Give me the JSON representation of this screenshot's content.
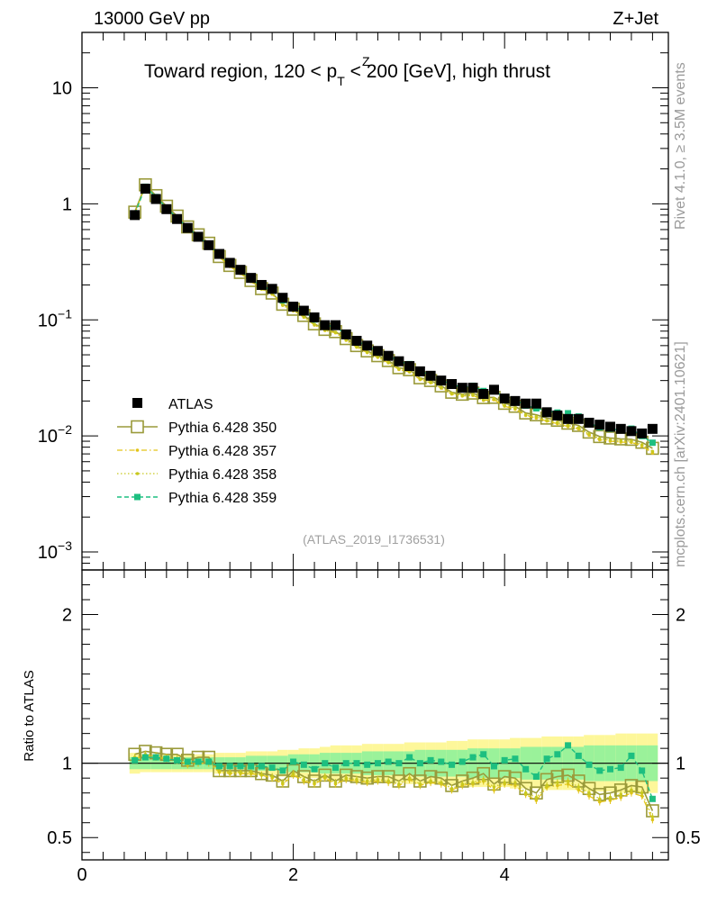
{
  "header": {
    "left": "13000 GeV pp",
    "right": "Z+Jet",
    "title_main": "Toward region, 120 < p",
    "title_sub": "T",
    "title_sup": "Z",
    "title_tail": " < 200 [GeV], high thrust",
    "watermark": "(ATLAS_2019_I1736531)"
  },
  "side_text": {
    "rivet": "Rivet 4.1.0, ≥ 3.5M events",
    "mcplots": "mcplots.cern.ch [arXiv:2401.10621]"
  },
  "chart_data": {
    "type": "scatter",
    "main_yscale": "log",
    "main_ylim": [
      0.0007,
      30
    ],
    "main_ytick_labels": [
      {
        "value": 10,
        "base": "10",
        "exp": ""
      },
      {
        "value": 1,
        "base": "1",
        "exp": ""
      },
      {
        "value": 0.1,
        "base": "10",
        "exp": "−1"
      },
      {
        "value": 0.01,
        "base": "10",
        "exp": "−2"
      },
      {
        "value": 0.001,
        "base": "10",
        "exp": "−3"
      }
    ],
    "xlim": [
      0,
      5.55
    ],
    "x_ticks": [
      {
        "value": 0,
        "label": "0"
      },
      {
        "value": 2,
        "label": "2"
      },
      {
        "value": 4,
        "label": "4"
      }
    ],
    "ratio_ylabel": "Ratio to ATLAS",
    "ratio_ylim": [
      0.35,
      2.3
    ],
    "ratio_ticks": [
      {
        "value": 2,
        "label": "2"
      },
      {
        "value": 1,
        "label": "1"
      },
      {
        "value": 0.5,
        "label": "0.5"
      }
    ],
    "x": [
      0.5,
      0.6,
      0.7,
      0.8,
      0.9,
      1.0,
      1.1,
      1.2,
      1.3,
      1.4,
      1.5,
      1.6,
      1.7,
      1.8,
      1.9,
      2.0,
      2.1,
      2.2,
      2.3,
      2.4,
      2.5,
      2.6,
      2.7,
      2.8,
      2.9,
      3.0,
      3.1,
      3.2,
      3.3,
      3.4,
      3.5,
      3.6,
      3.7,
      3.8,
      3.9,
      4.0,
      4.1,
      4.2,
      4.3,
      4.4,
      4.5,
      4.6,
      4.7,
      4.8,
      4.9,
      5.0,
      5.1,
      5.2,
      5.3,
      5.4
    ],
    "legend": [
      "ATLAS",
      "Pythia 6.428 350",
      "Pythia 6.428 357",
      "Pythia 6.428 358",
      "Pythia 6.428 359"
    ],
    "atlas_values": [
      0.8,
      1.35,
      1.1,
      0.9,
      0.74,
      0.62,
      0.52,
      0.44,
      0.37,
      0.31,
      0.27,
      0.23,
      0.2,
      0.185,
      0.155,
      0.13,
      0.12,
      0.105,
      0.09,
      0.09,
      0.075,
      0.066,
      0.06,
      0.054,
      0.049,
      0.044,
      0.04,
      0.036,
      0.033,
      0.03,
      0.028,
      0.026,
      0.026,
      0.023,
      0.025,
      0.021,
      0.02,
      0.019,
      0.019,
      0.016,
      0.015,
      0.014,
      0.014,
      0.013,
      0.0125,
      0.012,
      0.0115,
      0.011,
      0.0105,
      0.0115
    ],
    "series": [
      {
        "name": "Pythia 6.428 350",
        "color": "#9a9a3a",
        "style": "solid-open-square",
        "ratio": [
          1.06,
          1.08,
          1.07,
          1.06,
          1.06,
          1.02,
          1.04,
          1.04,
          0.95,
          0.95,
          0.95,
          0.95,
          0.93,
          0.92,
          0.88,
          0.95,
          0.91,
          0.88,
          0.92,
          0.88,
          0.92,
          0.91,
          0.9,
          0.91,
          0.91,
          0.88,
          0.93,
          0.88,
          0.91,
          0.9,
          0.85,
          0.88,
          0.9,
          0.93,
          0.86,
          0.91,
          0.9,
          0.83,
          0.8,
          0.89,
          0.91,
          0.92,
          0.88,
          0.83,
          0.79,
          0.8,
          0.82,
          0.85,
          0.84,
          0.68
        ]
      },
      {
        "name": "Pythia 6.428 357",
        "color": "#e3c418",
        "style": "dashdot-dot",
        "ratio": [
          1.03,
          1.05,
          1.04,
          1.03,
          1.02,
          0.99,
          1.0,
          1.0,
          0.94,
          0.93,
          0.93,
          0.93,
          0.92,
          0.9,
          0.86,
          0.92,
          0.88,
          0.86,
          0.9,
          0.86,
          0.89,
          0.88,
          0.87,
          0.88,
          0.87,
          0.85,
          0.89,
          0.85,
          0.87,
          0.86,
          0.82,
          0.85,
          0.86,
          0.88,
          0.82,
          0.86,
          0.85,
          0.79,
          0.75,
          0.84,
          0.85,
          0.86,
          0.82,
          0.78,
          0.74,
          0.75,
          0.77,
          0.8,
          0.78,
          0.62
        ]
      },
      {
        "name": "Pythia 6.428 358",
        "color": "#c8c81e",
        "style": "dotted-dot",
        "ratio": [
          1.04,
          1.06,
          1.05,
          1.04,
          1.03,
          1.0,
          1.01,
          1.01,
          0.95,
          0.94,
          0.94,
          0.94,
          0.92,
          0.91,
          0.87,
          0.93,
          0.89,
          0.87,
          0.91,
          0.87,
          0.9,
          0.89,
          0.88,
          0.89,
          0.88,
          0.86,
          0.9,
          0.86,
          0.88,
          0.87,
          0.83,
          0.86,
          0.87,
          0.89,
          0.84,
          0.87,
          0.87,
          0.8,
          0.77,
          0.85,
          0.87,
          0.88,
          0.84,
          0.8,
          0.76,
          0.77,
          0.79,
          0.82,
          0.8,
          0.64
        ]
      },
      {
        "name": "Pythia 6.428 359",
        "color": "#1dbf80",
        "style": "dashed-filled-square",
        "ratio": [
          1.02,
          1.04,
          1.04,
          1.03,
          1.02,
          1.01,
          1.01,
          1.01,
          0.98,
          0.98,
          0.98,
          0.98,
          0.98,
          0.97,
          0.95,
          1.01,
          0.99,
          0.96,
          1.0,
          0.97,
          1.0,
          1.0,
          0.99,
          1.0,
          1.01,
          1.0,
          1.04,
          1.0,
          1.02,
          1.01,
          0.99,
          1.01,
          1.04,
          1.06,
          0.98,
          1.02,
          1.03,
          0.96,
          0.91,
          1.03,
          1.06,
          1.12,
          1.05,
          0.99,
          0.95,
          0.96,
          0.97,
          1.05,
          0.95,
          0.76
        ]
      }
    ],
    "band_outer_half": [
      0.07,
      0.06,
      0.06,
      0.06,
      0.06,
      0.06,
      0.06,
      0.06,
      0.07,
      0.07,
      0.07,
      0.08,
      0.08,
      0.08,
      0.09,
      0.09,
      0.1,
      0.1,
      0.11,
      0.12,
      0.12,
      0.12,
      0.13,
      0.13,
      0.13,
      0.13,
      0.14,
      0.14,
      0.14,
      0.14,
      0.15,
      0.15,
      0.16,
      0.16,
      0.16,
      0.16,
      0.17,
      0.17,
      0.17,
      0.18,
      0.18,
      0.18,
      0.18,
      0.19,
      0.19,
      0.19,
      0.2,
      0.2,
      0.2,
      0.2
    ],
    "band_inner_half": [
      0.04,
      0.04,
      0.04,
      0.04,
      0.04,
      0.04,
      0.04,
      0.04,
      0.04,
      0.04,
      0.04,
      0.05,
      0.05,
      0.05,
      0.05,
      0.06,
      0.06,
      0.06,
      0.07,
      0.07,
      0.07,
      0.07,
      0.08,
      0.08,
      0.08,
      0.08,
      0.08,
      0.09,
      0.09,
      0.09,
      0.09,
      0.09,
      0.1,
      0.1,
      0.1,
      0.1,
      0.1,
      0.11,
      0.11,
      0.11,
      0.11,
      0.11,
      0.11,
      0.12,
      0.12,
      0.12,
      0.12,
      0.12,
      0.12,
      0.12
    ]
  }
}
